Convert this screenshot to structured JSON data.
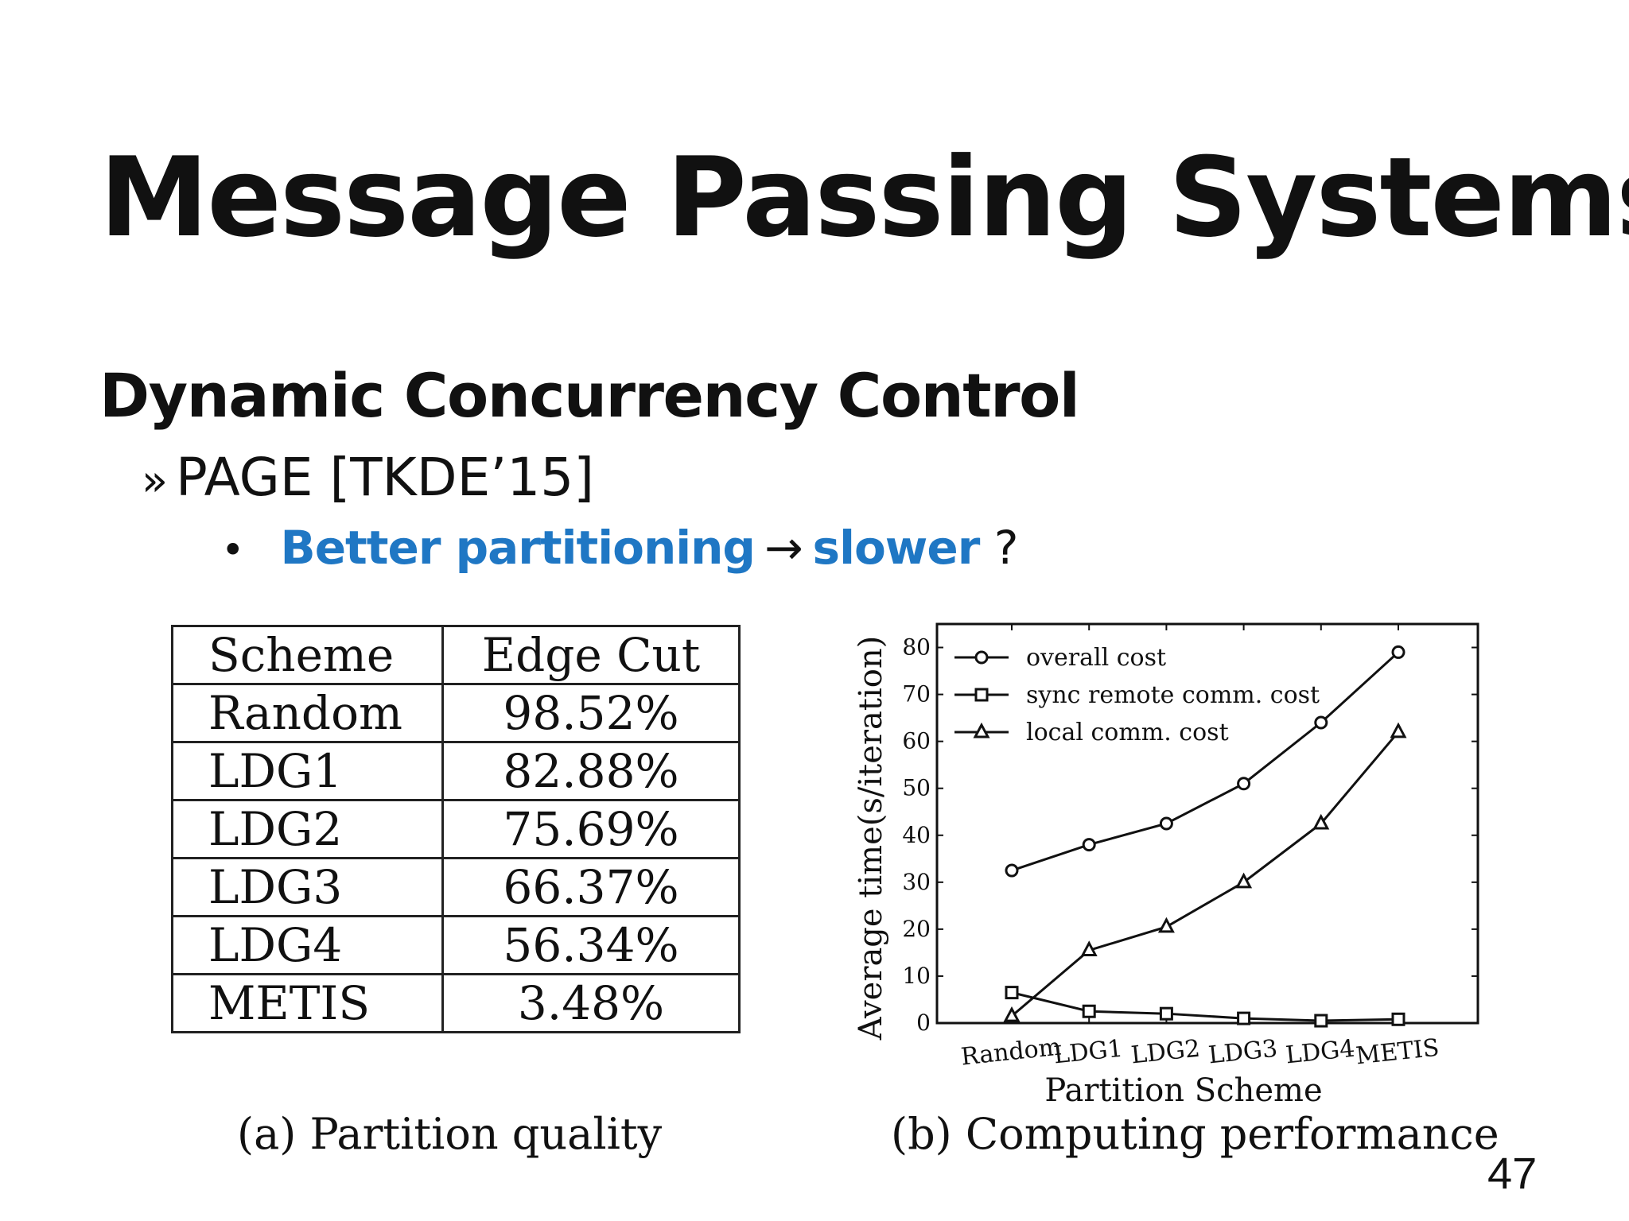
{
  "slide": {
    "title": "Message Passing Systems",
    "heading": "Dynamic Concurrency Control",
    "sub_bullet_marker": "»",
    "sub_bullet": "PAGE [TKDE’15]",
    "point_bullet": "•",
    "point_part1": "Better partitioning",
    "point_arrow": "→",
    "point_part2": "slower",
    "point_end": "?",
    "page_number": "47"
  },
  "table": {
    "headers": [
      "Scheme",
      "Edge Cut"
    ],
    "rows": [
      [
        "Random",
        "98.52%"
      ],
      [
        "LDG1",
        "82.88%"
      ],
      [
        "LDG2",
        "75.69%"
      ],
      [
        "LDG3",
        "66.37%"
      ],
      [
        "LDG4",
        "56.34%"
      ],
      [
        "METIS",
        "3.48%"
      ]
    ],
    "caption": "(a) Partition quality"
  },
  "chart_data": {
    "type": "line",
    "caption": "(b) Computing performance",
    "xlabel": "Partition Scheme",
    "ylabel": "Average time(s/iteration)",
    "categories": [
      "Random",
      "LDG1",
      "LDG2",
      "LDG3",
      "LDG4",
      "METIS"
    ],
    "ylim": [
      0,
      85
    ],
    "yticks": [
      0,
      10,
      20,
      30,
      40,
      50,
      60,
      70,
      80
    ],
    "legend_position": "top-left",
    "series": [
      {
        "name": "overall cost",
        "marker": "circle",
        "values": [
          32.5,
          38,
          42.5,
          51,
          64,
          79
        ]
      },
      {
        "name": "sync remote comm. cost",
        "marker": "square",
        "values": [
          6.5,
          2.5,
          2,
          1,
          0.5,
          0.8
        ]
      },
      {
        "name": "local comm. cost",
        "marker": "triangle",
        "values": [
          1.5,
          15.5,
          20.5,
          30,
          42.5,
          62
        ]
      }
    ]
  }
}
